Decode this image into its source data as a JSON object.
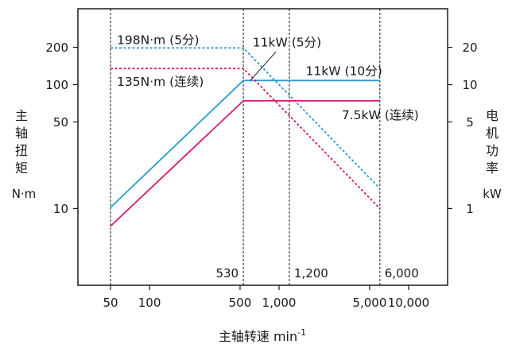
{
  "chart_data": {
    "type": "line",
    "title": "",
    "xlabel": "主轴转速 min",
    "xlabel_sup": "-1",
    "x_scale": "log",
    "xlim": [
      28,
      20000
    ],
    "x_ticks": [
      {
        "value": 50,
        "label": "50"
      },
      {
        "value": 100,
        "label": "100"
      },
      {
        "value": 500,
        "label": "500"
      },
      {
        "value": 1000,
        "label": "1,000"
      },
      {
        "value": 5000,
        "label": "5,000"
      },
      {
        "value": 10000,
        "label": "10,000"
      }
    ],
    "y_left": {
      "label": "主轴扭矩",
      "label_chars": [
        "主",
        "轴",
        "扭",
        "矩"
      ],
      "unit": "N·m",
      "scale": "log",
      "ylim": [
        2.4,
        410
      ],
      "ticks": [
        {
          "value": 200,
          "label": "200"
        },
        {
          "value": 100,
          "label": "100"
        },
        {
          "value": 50,
          "label": "50"
        },
        {
          "value": 10,
          "label": "10"
        }
      ]
    },
    "y_right": {
      "label": "电机功率",
      "label_chars": [
        "电",
        "机",
        "功",
        "率"
      ],
      "unit": "kW",
      "scale": "log",
      "ticks": [
        {
          "value": 20,
          "label": "20"
        },
        {
          "value": 10,
          "label": "10"
        },
        {
          "value": 5,
          "label": "5"
        },
        {
          "value": 1,
          "label": "1"
        }
      ]
    },
    "grid": false,
    "legend": "none",
    "series": [
      {
        "color": "#2a9bd4",
        "dash": "dotted",
        "points": [
          [
            50,
            198
          ],
          [
            530,
            198
          ],
          [
            6000,
            14.5
          ]
        ]
      },
      {
        "color": "#2a9bd4",
        "dash": "solid",
        "points": [
          [
            50,
            10.2
          ],
          [
            530,
            108
          ],
          [
            6000,
            108
          ]
        ]
      },
      {
        "color": "#d51a6f",
        "dash": "dotted",
        "points": [
          [
            50,
            135
          ],
          [
            530,
            135
          ],
          [
            6000,
            10
          ]
        ]
      },
      {
        "color": "#d51a6f",
        "dash": "solid",
        "points": [
          [
            50,
            7.2
          ],
          [
            530,
            74
          ],
          [
            6000,
            74
          ]
        ]
      }
    ],
    "vlines": [
      {
        "value": 50,
        "label": ""
      },
      {
        "value": 530,
        "label": "530"
      },
      {
        "value": 1200,
        "label": "1,200"
      },
      {
        "value": 6000,
        "label": "6,000"
      }
    ],
    "annotations": [
      {
        "text": "198N·m (5分)",
        "x": 50,
        "y": 198,
        "anchor": "start",
        "dx": 8,
        "dy": -5
      },
      {
        "text": "135N·m (连续)",
        "x": 50,
        "y": 135,
        "anchor": "start",
        "dx": 8,
        "dy": 22
      },
      {
        "text": "11kW (5分)",
        "x": 1000,
        "y": 198,
        "anchor": "middle",
        "dx": 10,
        "dy": -2
      },
      {
        "text": "11kW (10分)",
        "x": 6000,
        "y": 108,
        "anchor": "end",
        "dx": 3,
        "dy": -7
      },
      {
        "text": "7.5kW (连续)",
        "x": 6000,
        "y": 74,
        "anchor": "end",
        "dx": 49,
        "dy": 23
      }
    ],
    "leader": {
      "from": [
        1000,
        198
      ],
      "to": [
        600,
        108
      ]
    }
  }
}
